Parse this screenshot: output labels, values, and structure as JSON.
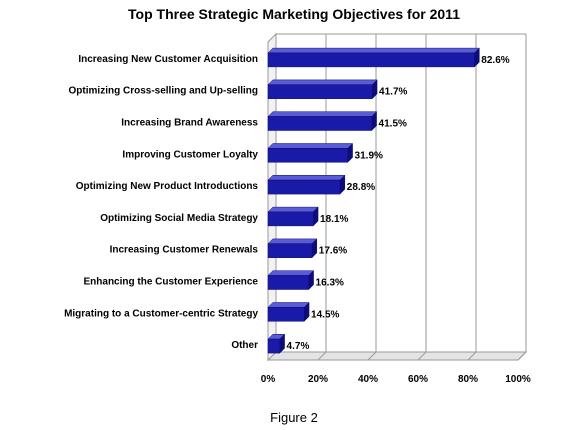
{
  "chart_data": {
    "type": "bar",
    "orientation": "horizontal",
    "title": "Top Three Strategic Marketing Objectives for 2011",
    "xlabel": "",
    "ylabel": "",
    "categories": [
      "Increasing New Customer Acquisition",
      "Optimizing Cross-selling and Up-selling",
      "Increasing Brand Awareness",
      "Improving Customer Loyalty",
      "Optimizing New Product Introductions",
      "Optimizing Social Media Strategy",
      "Increasing Customer Renewals",
      "Enhancing the Customer Experience",
      "Migrating to a Customer-centric Strategy",
      "Other"
    ],
    "values": [
      82.6,
      41.7,
      41.5,
      31.9,
      28.8,
      18.1,
      17.6,
      16.3,
      14.5,
      4.7
    ],
    "value_labels": [
      "82.6%",
      "41.7%",
      "41.5%",
      "31.9%",
      "28.8%",
      "18.1%",
      "17.6%",
      "16.3%",
      "14.5%",
      "4.7%"
    ],
    "xticks": [
      "0%",
      "20%",
      "40%",
      "60%",
      "80%",
      "100%"
    ],
    "xlim": [
      0,
      100
    ],
    "grid": true,
    "bar_color": "#1a1aa8",
    "legend": "none"
  },
  "caption": "Figure 2"
}
